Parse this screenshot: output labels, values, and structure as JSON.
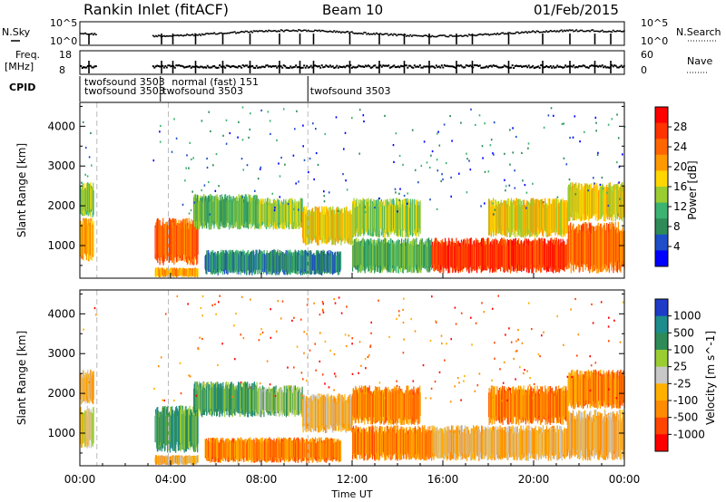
{
  "header": {
    "station": "Rankin Inlet (fitACF)",
    "beam": "Beam 10",
    "date": "01/Feb/2015"
  },
  "summary_panels": {
    "nsky_label": "N.Sky",
    "nsky_ticks": [
      "10^5",
      "10^0"
    ],
    "nsearch_label": "N.Search",
    "nsearch_ticks": [
      "10^5",
      "10^0"
    ],
    "freq_label": [
      "Freq.",
      "[MHz]"
    ],
    "freq_ticks": [
      "18",
      "8"
    ],
    "nave_label": "Nave",
    "nave_ticks": [
      "60",
      "0"
    ],
    "cpid_label": "CPID",
    "cpid_entries": [
      {
        "text": "twofsound   3503",
        "row": 0,
        "hour": 0.2
      },
      {
        "text": "twofsound   3503",
        "row": 1,
        "hour": 0.2
      },
      {
        "text": "normal (fast)  151",
        "row": 0,
        "hour": 4.05
      },
      {
        "text": "twofsound   3503",
        "row": 1,
        "hour": 3.65
      },
      {
        "text": "twofsound   3503",
        "row": 1,
        "hour": 10.15
      }
    ]
  },
  "colors": {
    "power": [
      "#0000ff",
      "#1e4ec8",
      "#2e8b57",
      "#3cb371",
      "#9acd32",
      "#ffd700",
      "#ff9900",
      "#ff6600",
      "#ff3300",
      "#ff0000"
    ],
    "velocity": [
      "#ff0000",
      "#ff4500",
      "#ff8c00",
      "#ffb000",
      "#c8c8c8",
      "#9acd32",
      "#2e8b57",
      "#1e8c8c",
      "#1e3cc8"
    ]
  },
  "chart_data": [
    {
      "type": "heatmap",
      "name": "power",
      "xlabel": "",
      "ylabel": "Slant Range [km]",
      "colorbar_label": "Power [dB]",
      "colorbar_ticks": [
        "28",
        "24",
        "20",
        "16",
        "12",
        "8",
        "4"
      ],
      "x_range_hours": [
        0,
        24
      ],
      "ylim_km": [
        180,
        4600
      ],
      "y_ticks": [
        1000,
        2000,
        3000,
        4000
      ],
      "echo_bands": [
        {
          "t0": 0.0,
          "t1": 0.6,
          "r0": 600,
          "r1": 1700,
          "level": 6
        },
        {
          "t0": 0.0,
          "t1": 0.6,
          "r0": 1700,
          "r1": 2600,
          "level": 4
        },
        {
          "t0": 3.3,
          "t1": 5.2,
          "r0": 500,
          "r1": 1700,
          "level": 7
        },
        {
          "t0": 3.3,
          "t1": 5.2,
          "r0": 200,
          "r1": 450,
          "level": 6
        },
        {
          "t0": 5.0,
          "t1": 7.8,
          "r0": 1400,
          "r1": 2300,
          "level": 3
        },
        {
          "t0": 7.8,
          "t1": 9.8,
          "r0": 1400,
          "r1": 2200,
          "level": 4
        },
        {
          "t0": 5.5,
          "t1": 11.5,
          "r0": 250,
          "r1": 900,
          "level": 2
        },
        {
          "t0": 9.8,
          "t1": 12.0,
          "r0": 1000,
          "r1": 2000,
          "level": 5
        },
        {
          "t0": 12.0,
          "t1": 15.0,
          "r0": 1200,
          "r1": 2200,
          "level": 4
        },
        {
          "t0": 12.0,
          "t1": 15.5,
          "r0": 300,
          "r1": 1200,
          "level": 3
        },
        {
          "t0": 15.5,
          "t1": 21.5,
          "r0": 300,
          "r1": 1200,
          "level": 8
        },
        {
          "t0": 18.0,
          "t1": 21.5,
          "r0": 1200,
          "r1": 2200,
          "level": 5
        },
        {
          "t0": 21.5,
          "t1": 24.0,
          "r0": 300,
          "r1": 1600,
          "level": 7
        },
        {
          "t0": 21.5,
          "t1": 24.0,
          "r0": 1600,
          "r1": 2600,
          "level": 5
        }
      ]
    },
    {
      "type": "heatmap",
      "name": "velocity",
      "xlabel": "Time UT",
      "ylabel": "Slant Range [km]",
      "colorbar_label": "Velocity [m s^-1]",
      "colorbar_ticks": [
        "1000",
        "500",
        "100",
        "25",
        "-25",
        "-100",
        "-500",
        "-1000"
      ],
      "x_range_hours": [
        0,
        24
      ],
      "ylim_km": [
        180,
        4600
      ],
      "y_ticks": [
        1000,
        2000,
        3000,
        4000
      ],
      "x_ticks": [
        "00:00",
        "04:00",
        "08:00",
        "12:00",
        "16:00",
        "20:00",
        "00:00"
      ],
      "echo_bands": [
        {
          "t0": 0.0,
          "t1": 0.6,
          "r0": 600,
          "r1": 1700,
          "level": 4
        },
        {
          "t0": 0.0,
          "t1": 0.6,
          "r0": 1700,
          "r1": 2600,
          "level": 3
        },
        {
          "t0": 3.3,
          "t1": 5.2,
          "r0": 500,
          "r1": 1700,
          "level": 6
        },
        {
          "t0": 3.3,
          "t1": 5.2,
          "r0": 200,
          "r1": 450,
          "level": 3
        },
        {
          "t0": 5.0,
          "t1": 7.8,
          "r0": 1400,
          "r1": 2300,
          "level": 6
        },
        {
          "t0": 7.8,
          "t1": 9.8,
          "r0": 1400,
          "r1": 2200,
          "level": 5
        },
        {
          "t0": 5.5,
          "t1": 11.5,
          "r0": 250,
          "r1": 900,
          "level": 2
        },
        {
          "t0": 9.8,
          "t1": 12.0,
          "r0": 1000,
          "r1": 2000,
          "level": 3
        },
        {
          "t0": 12.0,
          "t1": 15.0,
          "r0": 1200,
          "r1": 2200,
          "level": 2
        },
        {
          "t0": 12.0,
          "t1": 15.5,
          "r0": 300,
          "r1": 1200,
          "level": 2
        },
        {
          "t0": 15.5,
          "t1": 21.5,
          "r0": 300,
          "r1": 1200,
          "level": 3
        },
        {
          "t0": 18.0,
          "t1": 21.5,
          "r0": 1200,
          "r1": 2200,
          "level": 2
        },
        {
          "t0": 21.5,
          "t1": 24.0,
          "r0": 300,
          "r1": 1600,
          "level": 3
        },
        {
          "t0": 21.5,
          "t1": 24.0,
          "r0": 1600,
          "r1": 2600,
          "level": 2
        }
      ]
    }
  ]
}
